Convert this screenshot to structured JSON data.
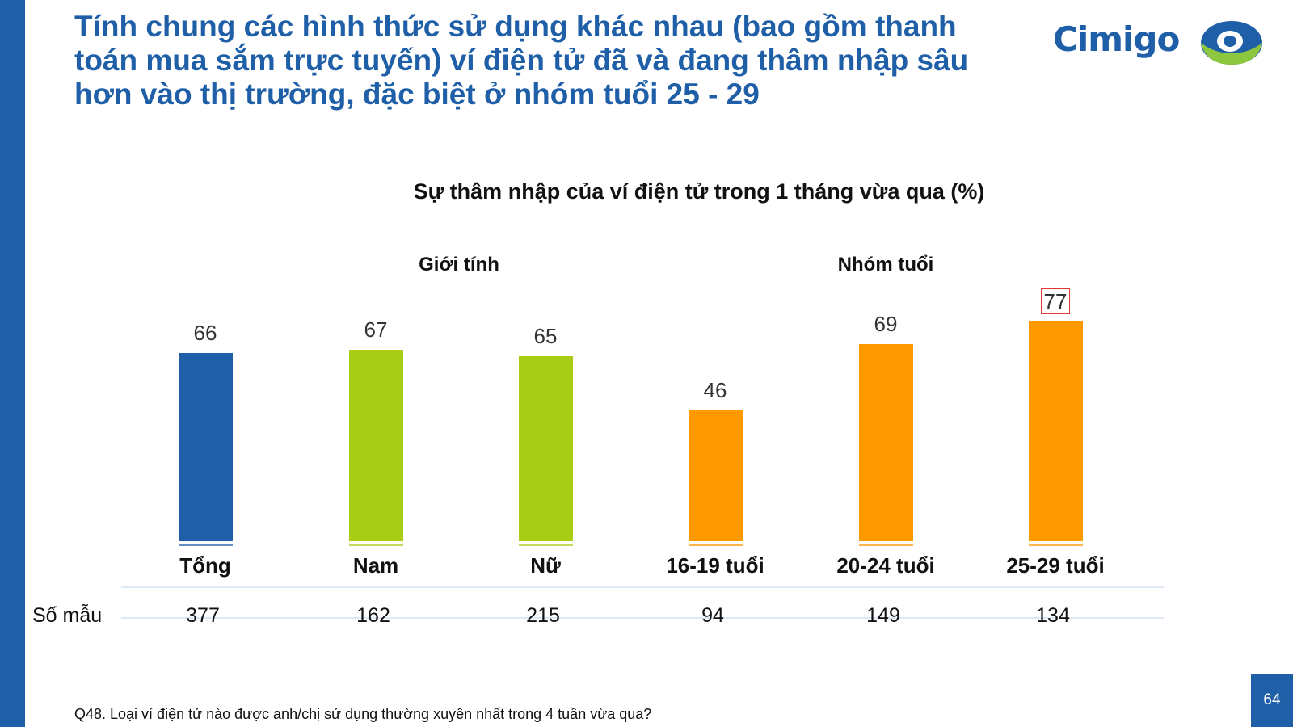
{
  "slide": {
    "title": "Tính chung các hình thức sử dụng khác nhau (bao gồm thanh toán mua sắm trực tuyến) ví điện tử đã và đang thâm nhập sâu hơn vào thị trường, đặc biệt ở nhóm tuổi 25 - 29",
    "logo_text": "Cimigo",
    "footnote": "Q48. Loại ví điện tử nào được anh/chị sử dụng thường xuyên nhất trong 4 tuần vừa qua?",
    "page_number": "64"
  },
  "colors": {
    "brand_blue": "#1f5fa8",
    "gender_green": "#a8cd14",
    "age_orange": "#ff9900",
    "highlight_red": "#e53935"
  },
  "chart_data": {
    "type": "bar",
    "title": "Sự thâm nhập của ví điện tử trong 1 tháng vừa qua (%)",
    "xlabel": "",
    "ylabel": "",
    "ylim": [
      0,
      100
    ],
    "grid": false,
    "groups": [
      {
        "label": "",
        "categories": [
          "Tổng"
        ]
      },
      {
        "label": "Giới tính",
        "categories": [
          "Nam",
          "Nữ"
        ]
      },
      {
        "label": "Nhóm tuổi",
        "categories": [
          "16-19 tuổi",
          "20-24 tuổi",
          "25-29 tuổi"
        ]
      }
    ],
    "categories": [
      "Tổng",
      "Nam",
      "Nữ",
      "16-19 tuổi",
      "20-24 tuổi",
      "25-29 tuổi"
    ],
    "values": [
      66,
      67,
      65,
      46,
      69,
      77
    ],
    "bar_colors": [
      "#1f5fa8",
      "#a8cd14",
      "#a8cd14",
      "#ff9900",
      "#ff9900",
      "#ff9900"
    ],
    "highlighted": "25-29 tuổi",
    "sample_size_label": "Số mẫu",
    "sample_sizes": [
      377,
      162,
      215,
      94,
      149,
      134
    ]
  }
}
